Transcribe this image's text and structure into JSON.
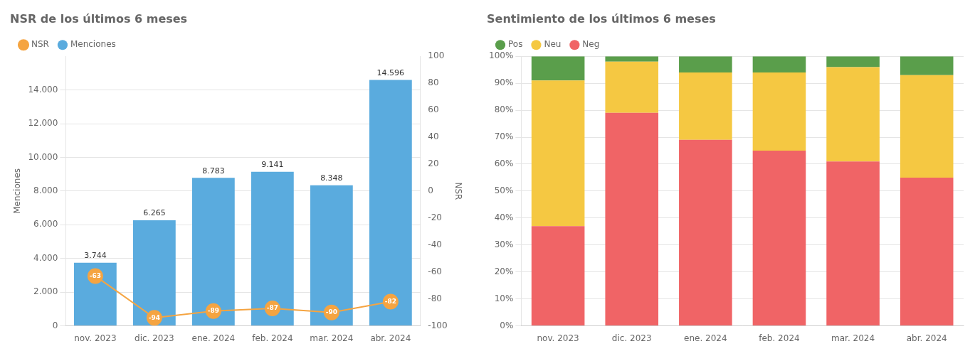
{
  "chart_data": [
    {
      "type": "bar",
      "title": "NSR de los últimos 6 meses",
      "categories": [
        "nov. 2023",
        "dic. 2023",
        "ene. 2024",
        "feb. 2024",
        "mar. 2024",
        "abr. 2024"
      ],
      "series": [
        {
          "name": "Menciones",
          "color": "#5aabde",
          "values": [
            3744,
            6265,
            8783,
            9141,
            8348,
            14596
          ],
          "value_labels": [
            "3.744",
            "6.265",
            "8.783",
            "9.141",
            "8.348",
            "14.596"
          ]
        },
        {
          "name": "NSR",
          "type": "line",
          "axis": "y2",
          "color": "#f5a441",
          "marker": "circle",
          "values": [
            -63,
            -94,
            -89,
            -87,
            -90,
            -82
          ]
        }
      ],
      "ylabel": "Menciones",
      "y2label": "NSR",
      "ylim": [
        0,
        16000
      ],
      "yticks": [
        0,
        {
          "value": 2000,
          "label": "2.000"
        },
        {
          "value": 4000,
          "label": "4.000"
        },
        {
          "value": 6000,
          "label": "6.000"
        },
        {
          "value": 8000,
          "label": "8.000"
        },
        {
          "value": 10000,
          "label": "10.000"
        },
        {
          "value": 12000,
          "label": "12.000"
        },
        {
          "value": 14000,
          "label": "14.000"
        }
      ],
      "y2lim": [
        -100,
        100
      ],
      "y2ticks": [
        -100,
        -80,
        -60,
        -40,
        -20,
        0,
        20,
        40,
        60,
        80,
        100
      ],
      "grid": true,
      "legend": "upper left",
      "data_labels": true
    },
    {
      "type": "bar",
      "title": "Sentimiento de los últimos 6 meses",
      "categories": [
        "nov. 2023",
        "dic. 2023",
        "ene. 2024",
        "feb. 2024",
        "mar. 2024",
        "abr. 2024"
      ],
      "series": [
        {
          "name": "Neg",
          "color": "#f06466",
          "values": [
            37,
            79,
            69,
            65,
            61,
            55
          ]
        },
        {
          "name": "Neu",
          "color": "#f5c842",
          "values": [
            54,
            19,
            25,
            29,
            35,
            38
          ]
        },
        {
          "name": "Pos",
          "color": "#5a9e4b",
          "values": [
            9,
            2,
            6,
            6,
            4,
            7
          ]
        }
      ],
      "stacked": true,
      "ylim": [
        0,
        100
      ],
      "yticks": [
        {
          "value": 0,
          "label": "0%"
        },
        {
          "value": 10,
          "label": "10%"
        },
        {
          "value": 20,
          "label": "20%"
        },
        {
          "value": 30,
          "label": "30%"
        },
        {
          "value": 40,
          "label": "40%"
        },
        {
          "value": 50,
          "label": "50%"
        },
        {
          "value": 60,
          "label": "60%"
        },
        {
          "value": 70,
          "label": "70%"
        },
        {
          "value": 80,
          "label": "80%"
        },
        {
          "value": 90,
          "label": "90%"
        },
        {
          "value": 100,
          "label": "100%"
        }
      ],
      "grid": true,
      "legend": "upper left",
      "data_labels": false
    }
  ]
}
